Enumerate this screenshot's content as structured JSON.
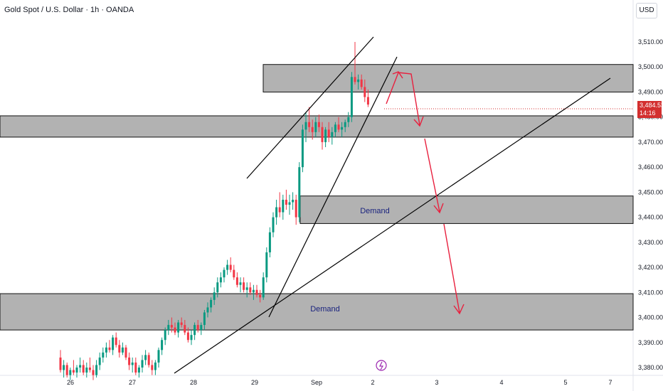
{
  "title": "Gold Spot / U.S. Dollar · 1h · OANDA",
  "currency_button": "USD",
  "last_price": {
    "value": "3,484.535",
    "countdown": "14:16"
  },
  "zone_labels": [
    "Demand",
    "Demand"
  ],
  "colors": {
    "up": "#089981",
    "down": "#f23645",
    "zone": "#b2b2b2",
    "arrow": "#e8203e",
    "price_tag": "#d32f2f"
  },
  "chart_data": {
    "type": "candlestick",
    "title": "Gold Spot / U.S. Dollar · 1h · OANDA",
    "y_ticks": [
      3380,
      3390,
      3400,
      3410,
      3420,
      3430,
      3440,
      3450,
      3460,
      3470,
      3480,
      3490,
      3500,
      3510
    ],
    "y_tick_labels": [
      "3,380.000",
      "3,390.000",
      "3,400.000",
      "3,410.000",
      "3,420.000",
      "3,430.000",
      "3,440.000",
      "3,450.000",
      "3,460.000",
      "3,470.000",
      "3,480.000",
      "3,490.000",
      "3,500.000",
      "3,510.000"
    ],
    "x_tick_labels": [
      "26",
      "27",
      "28",
      "29",
      "Sep",
      "2",
      "3",
      "4",
      "5",
      "7"
    ],
    "ylim": [
      3375,
      3520
    ],
    "last_price": 3484.535,
    "zones": [
      {
        "from": 3490,
        "to": 3501,
        "label": ""
      },
      {
        "from": 3472,
        "to": 3480.5,
        "label": ""
      },
      {
        "from": 3437.5,
        "to": 3448.5,
        "label": "Demand"
      },
      {
        "from": 3395,
        "to": 3409.5,
        "label": "Demand"
      }
    ],
    "candles": [
      [
        3384,
        3387,
        3378,
        3379
      ],
      [
        3379,
        3383,
        3376,
        3381
      ],
      [
        3381,
        3382,
        3376,
        3377
      ],
      [
        3377,
        3380,
        3375,
        3379
      ],
      [
        3379,
        3383,
        3377,
        3378
      ],
      [
        3378,
        3381,
        3376,
        3380
      ],
      [
        3380,
        3384,
        3378,
        3381
      ],
      [
        3381,
        3383,
        3377,
        3378
      ],
      [
        3378,
        3382,
        3376,
        3380
      ],
      [
        3380,
        3384,
        3378,
        3379
      ],
      [
        3379,
        3381,
        3375,
        3377
      ],
      [
        3377,
        3383,
        3376,
        3381
      ],
      [
        3381,
        3386,
        3379,
        3384
      ],
      [
        3384,
        3388,
        3382,
        3386
      ],
      [
        3386,
        3390,
        3384,
        3388
      ],
      [
        3388,
        3391,
        3386,
        3387
      ],
      [
        3387,
        3393,
        3385,
        3392
      ],
      [
        3392,
        3394,
        3388,
        3389
      ],
      [
        3389,
        3391,
        3384,
        3386
      ],
      [
        3386,
        3390,
        3385,
        3388
      ],
      [
        3388,
        3389,
        3383,
        3384
      ],
      [
        3384,
        3386,
        3379,
        3381
      ],
      [
        3381,
        3384,
        3378,
        3382
      ],
      [
        3382,
        3384,
        3377,
        3378
      ],
      [
        3378,
        3381,
        3376,
        3380
      ],
      [
        3380,
        3385,
        3378,
        3383
      ],
      [
        3383,
        3387,
        3381,
        3385
      ],
      [
        3385,
        3386,
        3380,
        3381
      ],
      [
        3381,
        3383,
        3377,
        3379
      ],
      [
        3379,
        3383,
        3377,
        3382
      ],
      [
        3382,
        3388,
        3380,
        3387
      ],
      [
        3387,
        3392,
        3385,
        3391
      ],
      [
        3391,
        3396,
        3389,
        3395
      ],
      [
        3395,
        3399,
        3393,
        3397
      ],
      [
        3397,
        3400,
        3394,
        3396
      ],
      [
        3396,
        3398,
        3393,
        3394
      ],
      [
        3394,
        3399,
        3392,
        3398
      ],
      [
        3398,
        3400,
        3396,
        3397
      ],
      [
        3397,
        3399,
        3393,
        3394
      ],
      [
        3394,
        3396,
        3390,
        3391
      ],
      [
        3391,
        3395,
        3389,
        3393
      ],
      [
        3393,
        3398,
        3391,
        3397
      ],
      [
        3397,
        3399,
        3394,
        3395
      ],
      [
        3395,
        3398,
        3393,
        3397
      ],
      [
        3397,
        3403,
        3395,
        3402
      ],
      [
        3402,
        3406,
        3400,
        3404
      ],
      [
        3404,
        3408,
        3402,
        3407
      ],
      [
        3407,
        3412,
        3405,
        3410
      ],
      [
        3410,
        3416,
        3408,
        3414
      ],
      [
        3414,
        3418,
        3412,
        3416
      ],
      [
        3416,
        3420,
        3414,
        3419
      ],
      [
        3419,
        3423,
        3417,
        3421
      ],
      [
        3421,
        3424,
        3418,
        3419
      ],
      [
        3419,
        3421,
        3415,
        3416
      ],
      [
        3416,
        3418,
        3412,
        3413
      ],
      [
        3413,
        3416,
        3410,
        3414
      ],
      [
        3414,
        3416,
        3410,
        3411
      ],
      [
        3411,
        3414,
        3408,
        3412
      ],
      [
        3412,
        3414,
        3409,
        3410
      ],
      [
        3410,
        3413,
        3407,
        3411
      ],
      [
        3411,
        3413,
        3408,
        3409
      ],
      [
        3409,
        3411,
        3406,
        3408
      ],
      [
        3408,
        3418,
        3407,
        3416
      ],
      [
        3416,
        3428,
        3414,
        3426
      ],
      [
        3426,
        3436,
        3424,
        3434
      ],
      [
        3434,
        3442,
        3432,
        3440
      ],
      [
        3440,
        3447,
        3437,
        3444
      ],
      [
        3444,
        3450,
        3440,
        3442
      ],
      [
        3442,
        3449,
        3439,
        3447
      ],
      [
        3447,
        3451,
        3443,
        3445
      ],
      [
        3445,
        3449,
        3441,
        3446
      ],
      [
        3446,
        3450,
        3443,
        3447
      ],
      [
        3447,
        3449,
        3437,
        3440
      ],
      [
        3440,
        3462,
        3438,
        3460
      ],
      [
        3460,
        3477,
        3458,
        3475
      ],
      [
        3475,
        3482,
        3470,
        3478
      ],
      [
        3478,
        3484,
        3474,
        3476
      ],
      [
        3476,
        3479,
        3471,
        3474
      ],
      [
        3474,
        3480,
        3472,
        3478
      ],
      [
        3478,
        3481,
        3474,
        3476
      ],
      [
        3476,
        3478,
        3467,
        3470
      ],
      [
        3470,
        3476,
        3468,
        3475
      ],
      [
        3475,
        3478,
        3470,
        3472
      ],
      [
        3472,
        3476,
        3469,
        3474
      ],
      [
        3474,
        3478,
        3472,
        3477
      ],
      [
        3477,
        3480,
        3474,
        3475
      ],
      [
        3475,
        3478,
        3472,
        3476
      ],
      [
        3476,
        3479,
        3474,
        3478
      ],
      [
        3478,
        3482,
        3476,
        3480
      ],
      [
        3480,
        3498,
        3478,
        3496
      ],
      [
        3496,
        3510,
        3493,
        3494
      ],
      [
        3494,
        3497,
        3491,
        3495
      ],
      [
        3495,
        3497,
        3491,
        3492
      ],
      [
        3492,
        3495,
        3486,
        3488
      ],
      [
        3488,
        3491,
        3484,
        3485
      ]
    ]
  }
}
